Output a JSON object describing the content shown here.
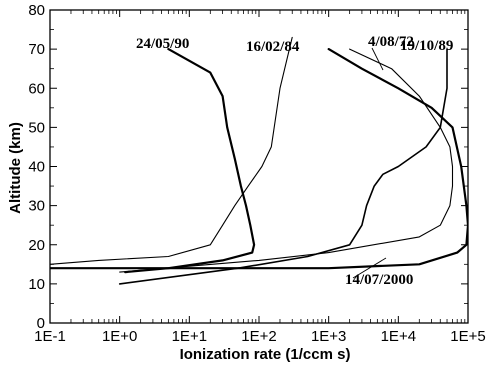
{
  "chart_data": {
    "type": "line",
    "xlabel": "Ionization rate (1/ccm s)",
    "ylabel": "Altitude (km)",
    "xscale": "log",
    "xlim": [
      0.1,
      100000
    ],
    "ylim": [
      0,
      80
    ],
    "xtick_labels": [
      "1E-1",
      "1E+0",
      "1E+1",
      "1E+2",
      "1E+3",
      "1E+4",
      "1E+5"
    ],
    "ytick_labels": [
      "0",
      "10",
      "20",
      "30",
      "40",
      "50",
      "60",
      "70",
      "80"
    ],
    "grid": false,
    "legend": "none",
    "series": [
      {
        "name": "24/05/90",
        "x": [
          5,
          20,
          30,
          35,
          45,
          55,
          65,
          75,
          85,
          80,
          30,
          5,
          1.2
        ],
        "y": [
          70,
          64,
          58,
          50,
          42,
          35,
          30,
          25,
          20,
          18,
          16,
          14,
          13
        ]
      },
      {
        "name": "16/02/84",
        "x": [
          300,
          200,
          150,
          110,
          70,
          45,
          30,
          20,
          5,
          0.5,
          0.1
        ],
        "y": [
          73,
          60,
          45,
          40,
          35,
          30,
          25,
          20,
          17,
          16,
          15
        ]
      },
      {
        "name": "4/08/72",
        "x": [
          2000,
          8000,
          20000,
          40000,
          55000,
          60000,
          60000,
          55000,
          40000,
          20000,
          1000,
          100,
          1
        ],
        "y": [
          70,
          65,
          58,
          50,
          45,
          40,
          35,
          30,
          25,
          22,
          18,
          16,
          13
        ]
      },
      {
        "name": "19/10/89",
        "x": [
          50000,
          50000,
          40000,
          25000,
          10000,
          6000,
          4500,
          3500,
          3000,
          2000,
          500,
          50,
          1
        ],
        "y": [
          70,
          60,
          50,
          45,
          40,
          38,
          35,
          30,
          25,
          20,
          17,
          14,
          10
        ]
      },
      {
        "name": "14/07/2000",
        "x": [
          1000,
          3000,
          10000,
          30000,
          60000,
          80000,
          95000,
          100000,
          95000,
          70000,
          20000,
          1000,
          10,
          0.1
        ],
        "y": [
          70,
          65,
          60,
          55,
          50,
          40,
          30,
          25,
          20,
          18,
          15,
          14,
          14,
          14
        ]
      }
    ],
    "annotations": [
      {
        "text": "24/05/90",
        "series": "24/05/90"
      },
      {
        "text": "16/02/84",
        "series": "16/02/84"
      },
      {
        "text": "4/08/72",
        "series": "4/08/72"
      },
      {
        "text": "19/10/89",
        "series": "19/10/89"
      },
      {
        "text": "14/07/2000",
        "series": "14/07/2000"
      }
    ]
  }
}
